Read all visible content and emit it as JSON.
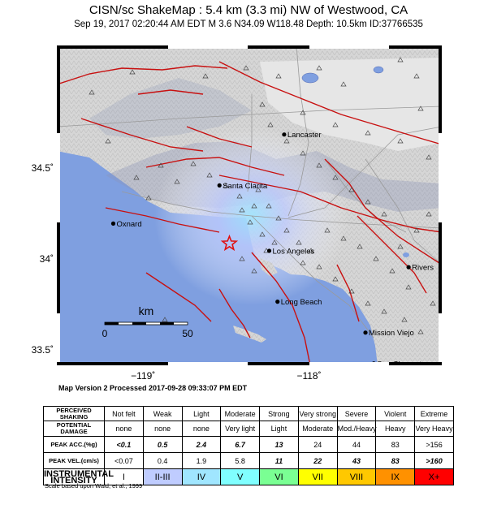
{
  "title": "CISN/sc ShakeMap : 5.4 km (3.3 mi) NW of Westwood, CA",
  "subtitle": "Sep 19, 2017 02:20:44 AM EDT   M 3.6   N34.09 W118.48   Depth: 10.5km   ID:37766535",
  "axes": {
    "y_ticks": [
      {
        "label": "34.5˚",
        "value": 34.5
      },
      {
        "label": "34˚",
        "value": 34.0
      },
      {
        "label": "33.5˚",
        "value": 33.5
      }
    ],
    "x_ticks": [
      {
        "label": "−119˚",
        "value": -119.0
      },
      {
        "label": "−118˚",
        "value": -118.0
      }
    ],
    "lon_range": [
      -119.52,
      -117.2
    ],
    "lat_range": [
      33.42,
      35.18
    ]
  },
  "cities": [
    {
      "name": "Lancaster",
      "lon": -118.15,
      "lat": 34.69
    },
    {
      "name": "Santa Clarita",
      "lon": -118.54,
      "lat": 34.41
    },
    {
      "name": "Oxnard",
      "lon": -119.18,
      "lat": 34.2
    },
    {
      "name": "Los Angeles",
      "lon": -118.24,
      "lat": 34.05
    },
    {
      "name": "Rivers",
      "lon": -117.4,
      "lat": 33.96
    },
    {
      "name": "Long Beach",
      "lon": -118.19,
      "lat": 33.77
    },
    {
      "name": "Mission Viejo",
      "lon": -117.66,
      "lat": 33.6
    },
    {
      "name": "San Clemente",
      "lon": -117.61,
      "lat": 33.43
    }
  ],
  "epicenter": {
    "lon": -118.48,
    "lat": 34.09
  },
  "scale_bar": {
    "unit": "km",
    "start": "0",
    "end": "50"
  },
  "map_version": "Map Version 2 Processed 2017-09-28 09:33:07 PM EDT",
  "table": {
    "row_labels": {
      "shaking": "PERCEIVED SHAKING",
      "damage": "POTENTIAL DAMAGE",
      "acc": "PEAK ACC.(%g)",
      "vel": "PEAK VEL.(cm/s)",
      "intensity": "INSTRUMENTAL INTENSITY"
    },
    "shaking": [
      "Not felt",
      "Weak",
      "Light",
      "Moderate",
      "Strong",
      "Very strong",
      "Severe",
      "Violent",
      "Extreme"
    ],
    "damage": [
      "none",
      "none",
      "none",
      "Very light",
      "Light",
      "Moderate",
      "Mod./Heavy",
      "Heavy",
      "Very Heavy"
    ],
    "acc": [
      "<0.1",
      "0.5",
      "2.4",
      "6.7",
      "13",
      "24",
      "44",
      "83",
      ">156"
    ],
    "vel": [
      "<0.07",
      "0.4",
      "1.9",
      "5.8",
      "11",
      "22",
      "43",
      "83",
      ">160"
    ],
    "intensity": [
      "I",
      "II-III",
      "IV",
      "V",
      "VI",
      "VII",
      "VIII",
      "IX",
      "X+"
    ]
  },
  "colors": {
    "ocean": "#7f9fe0",
    "land": "#dcdcdc",
    "faults": "#c81010",
    "intensity": [
      "#ffffff",
      "#bfccff",
      "#a0e6ff",
      "#80ffff",
      "#7aff93",
      "#ffff00",
      "#ffc800",
      "#ff9100",
      "#ff0000"
    ]
  },
  "footnote": "Scale based upon Wald, et al.; 1999"
}
